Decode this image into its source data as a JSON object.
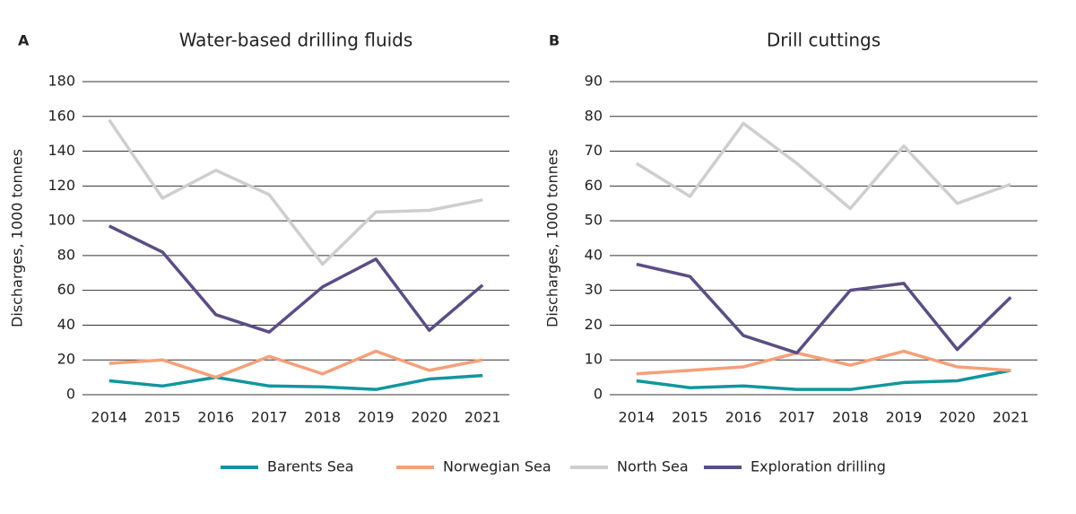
{
  "chart_data": [
    {
      "type": "line",
      "label": "A",
      "title": "Water-based drilling fluids",
      "y_label": "Discharges, 1000 tonnes",
      "categories": [
        "2014",
        "2015",
        "2016",
        "2017",
        "2018",
        "2019",
        "2020",
        "2021"
      ],
      "series": [
        {
          "name": "Barents Sea",
          "color": "#12959f",
          "values": [
            8,
            5,
            10,
            5,
            4.5,
            3,
            9,
            11
          ]
        },
        {
          "name": "Norwegian Sea",
          "color": "#f4a07a",
          "values": [
            18,
            20,
            10,
            22,
            12,
            25,
            14,
            20
          ]
        },
        {
          "name": "North Sea",
          "color": "#d0cdcd",
          "values": [
            158,
            113,
            129,
            115,
            75,
            105,
            106,
            112
          ]
        },
        {
          "name": "Exploration drilling",
          "color": "#5c4d85",
          "values": [
            97,
            82,
            46,
            36,
            62,
            78,
            37,
            63
          ]
        }
      ],
      "ylim": [
        0,
        180
      ],
      "yticks": [
        0,
        20,
        40,
        60,
        80,
        100,
        120,
        140,
        160,
        180
      ],
      "grid": true
    },
    {
      "type": "line",
      "label": "B",
      "title": "Drill cuttings",
      "y_label": "Discharges, 1000 tonnes",
      "categories": [
        "2014",
        "2015",
        "2016",
        "2017",
        "2018",
        "2019",
        "2020",
        "2021"
      ],
      "series": [
        {
          "color": "#12959f",
          "values": [
            4,
            2,
            2.5,
            1.5,
            1.5,
            3.5,
            4,
            7
          ]
        },
        {
          "color": "#f4a07a",
          "values": [
            6,
            7,
            8,
            12,
            8.5,
            12.5,
            8,
            7
          ]
        },
        {
          "color": "#d0cdcd",
          "values": [
            66.5,
            57,
            78,
            66.5,
            53.5,
            71.5,
            55,
            60.5
          ]
        },
        {
          "color": "#5c4d85",
          "values": [
            37.5,
            34,
            17,
            12,
            30,
            32,
            13,
            28
          ]
        }
      ],
      "ylim": [
        0,
        90
      ],
      "yticks": [
        0,
        10,
        20,
        30,
        40,
        50,
        60,
        70,
        80,
        90
      ],
      "grid": true
    }
  ]
}
